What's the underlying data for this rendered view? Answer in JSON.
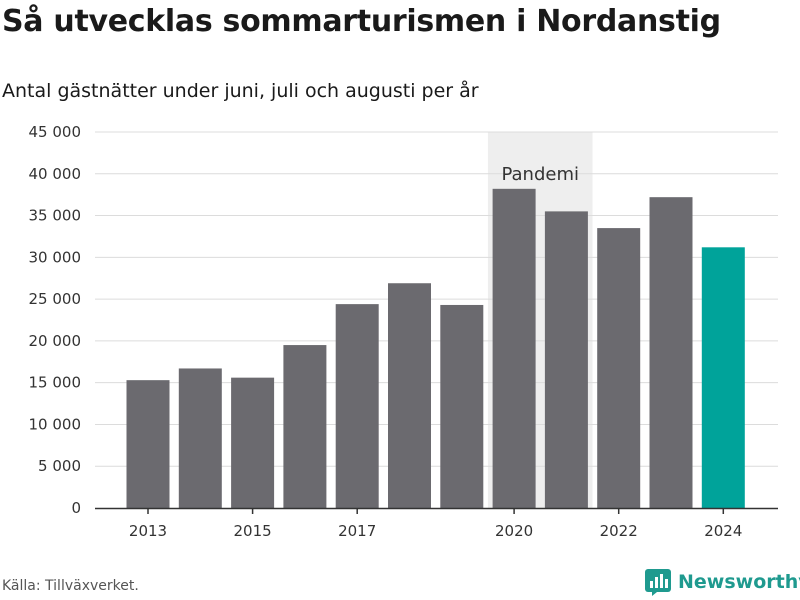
{
  "title": "Så utvecklas sommarturismen i Nordanstig",
  "subtitle": "Antal gästnätter under juni, juli och augusti per år",
  "source": "Källa: Tillväxverket.",
  "brand": {
    "name": "Newsworthy",
    "icon": "newsworthy-logo-icon",
    "color": "#1f9a8f"
  },
  "chart_data": {
    "type": "bar",
    "categories": [
      "2013",
      "2014",
      "2015",
      "2016",
      "2017",
      "2018",
      "2019",
      "2020",
      "2021",
      "2022",
      "2023",
      "2024"
    ],
    "values": [
      15300,
      16700,
      15600,
      19500,
      24400,
      26900,
      24300,
      38200,
      35500,
      33500,
      37200,
      31200
    ],
    "x_tick_labels": [
      "2013",
      "2015",
      "2017",
      "2020",
      "2022",
      "2024"
    ],
    "y_ticks": [
      0,
      5000,
      10000,
      15000,
      20000,
      25000,
      30000,
      35000,
      40000,
      45000
    ],
    "y_tick_labels": [
      "0",
      "5 000",
      "10 000",
      "15 000",
      "20 000",
      "25 000",
      "30 000",
      "35 000",
      "40 000",
      "45 000"
    ],
    "ylim": [
      0,
      45000
    ],
    "grid": true,
    "bar_color": "#6b6a6f",
    "highlight_category": "2024",
    "highlight_color": "#00a39a",
    "annotation": {
      "label": "Pandemi",
      "from": "2020",
      "to": "2021",
      "color": "#eeeeee"
    }
  }
}
